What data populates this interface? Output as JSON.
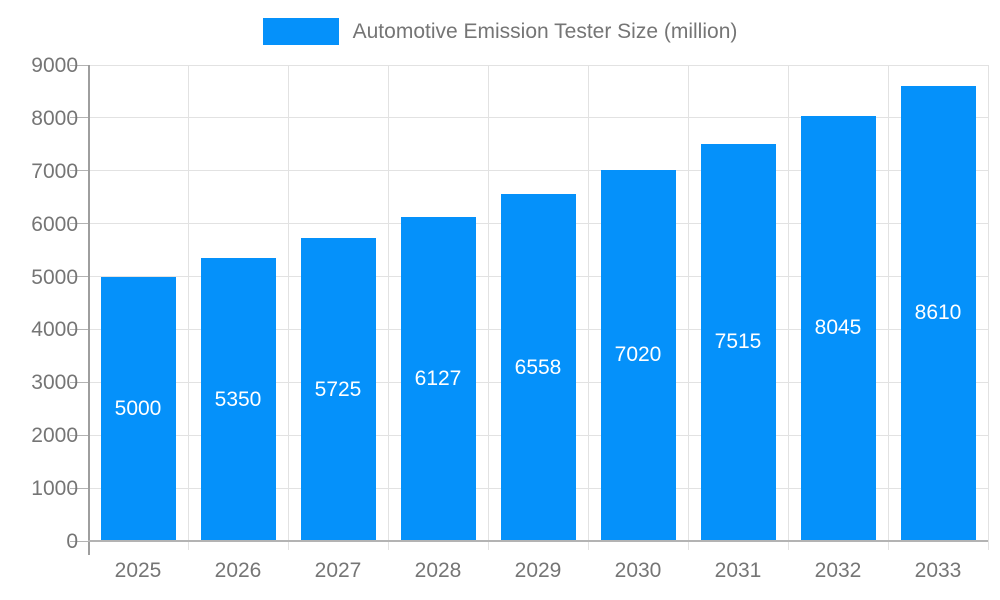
{
  "chart_data": {
    "type": "bar",
    "title": "Automotive Emission Tester Size (million)",
    "legend": {
      "label": "Automotive Emission Tester Size (million)",
      "position": "top"
    },
    "categories": [
      "2025",
      "2026",
      "2027",
      "2028",
      "2029",
      "2030",
      "2031",
      "2032",
      "2033"
    ],
    "series": [
      {
        "name": "Automotive Emission Tester Size (million)",
        "values": [
          5000,
          5350,
          5725,
          6127,
          6558,
          7020,
          7515,
          8045,
          8610
        ]
      }
    ],
    "bar_labels": [
      "5000",
      "5350",
      "5725",
      "6127",
      "6558",
      "7020",
      "7515",
      "8045",
      "8610"
    ],
    "xlabel": "",
    "ylabel": "",
    "ylim": [
      0,
      9000
    ],
    "y_tick_step": 1000,
    "y_tick_labels": [
      "0",
      "1000",
      "2000",
      "3000",
      "4000",
      "5000",
      "6000",
      "7000",
      "8000",
      "9000"
    ],
    "grid": true,
    "colors": {
      "bar": "#0591fa",
      "bar_value_text": "#ffffff",
      "axis_text": "#757575",
      "gridline": "#e2e2e2",
      "axis_line": "#9e9e9e",
      "baseline": "#b3b3b3"
    }
  }
}
